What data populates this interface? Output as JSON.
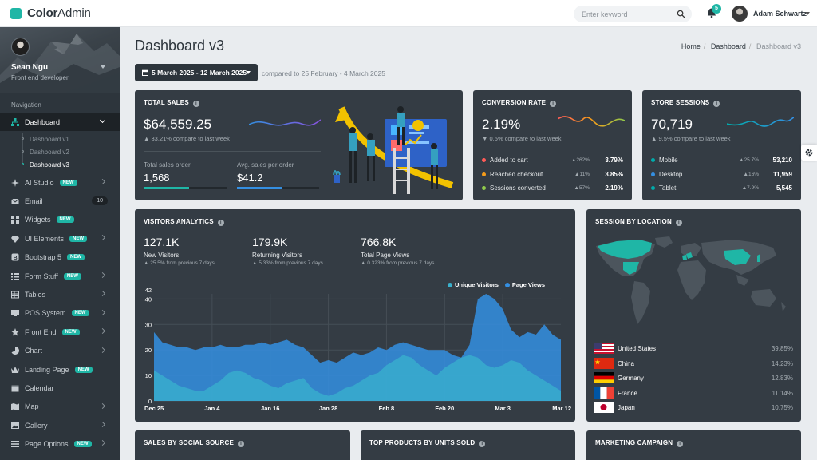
{
  "app": {
    "logo_bold": "Color",
    "logo_light": "Admin",
    "search_placeholder": "Enter keyword",
    "notification_count": "5",
    "user_name": "Adam Schwartz"
  },
  "sidebar": {
    "profile_name": "Sean Ngu",
    "profile_role": "Front end developer",
    "nav_header": "Navigation",
    "dashboard_label": "Dashboard",
    "sub_items": [
      "Dashboard v1",
      "Dashboard v2",
      "Dashboard v3"
    ],
    "items": [
      {
        "label": "AI Studio",
        "icon": "sparkle-icon",
        "badge": "NEW",
        "chevron": true
      },
      {
        "label": "Email",
        "icon": "email-icon",
        "count": "10"
      },
      {
        "label": "Widgets",
        "icon": "widgets-icon",
        "badge": "NEW"
      },
      {
        "label": "UI Elements",
        "icon": "gem-icon",
        "badge": "NEW",
        "chevron": true
      },
      {
        "label": "Bootstrap 5",
        "icon": "bootstrap-icon",
        "badge": "NEW"
      },
      {
        "label": "Form Stuff",
        "icon": "form-icon",
        "badge": "NEW",
        "chevron": true
      },
      {
        "label": "Tables",
        "icon": "table-icon",
        "chevron": true
      },
      {
        "label": "POS System",
        "icon": "pos-icon",
        "badge": "NEW",
        "chevron": true
      },
      {
        "label": "Front End",
        "icon": "star-icon",
        "badge": "NEW",
        "chevron": true
      },
      {
        "label": "Chart",
        "icon": "chart-icon",
        "chevron": true
      },
      {
        "label": "Landing Page",
        "icon": "crown-icon",
        "badge": "NEW"
      },
      {
        "label": "Calendar",
        "icon": "calendar-icon"
      },
      {
        "label": "Map",
        "icon": "map-icon",
        "chevron": true
      },
      {
        "label": "Gallery",
        "icon": "gallery-icon",
        "chevron": true
      },
      {
        "label": "Page Options",
        "icon": "page-options-icon",
        "badge": "NEW",
        "chevron": true
      }
    ]
  },
  "page": {
    "title": "Dashboard v3",
    "breadcrumb": [
      "Home",
      "Dashboard",
      "Dashboard v3"
    ],
    "date_range": "5 March 2025 - 12 March 2025",
    "compared_to": "compared to 25 February - 4 March 2025"
  },
  "total_sales": {
    "title": "TOTAL SALES",
    "value": "$64,559.25",
    "change": "33.21% compare to last week",
    "orders_label": "Total sales order",
    "orders_value": "1,568",
    "orders_progress": 0.5,
    "avg_label": "Avg. sales per order",
    "avg_value": "$41.2",
    "avg_progress": 0.5
  },
  "conversion_rate": {
    "title": "CONVERSION RATE",
    "value": "2.19%",
    "change": "0.5% compare to last week",
    "rows": [
      {
        "label": "Added to cart",
        "pct": "262%",
        "value": "3.79%",
        "color": "#ff5b57"
      },
      {
        "label": "Reached checkout",
        "pct": "11%",
        "value": "3.85%",
        "color": "#f59c1a"
      },
      {
        "label": "Sessions converted",
        "pct": "57%",
        "value": "2.19%",
        "color": "#90ca4b"
      }
    ]
  },
  "store_sessions": {
    "title": "STORE SESSIONS",
    "value": "70,719",
    "change": "9.5% compare to last week",
    "rows": [
      {
        "label": "Mobile",
        "pct": "25.7%",
        "value": "53,210",
        "color": "#00acac"
      },
      {
        "label": "Desktop",
        "pct": "16%",
        "value": "11,959",
        "color": "#348fe2"
      },
      {
        "label": "Tablet",
        "pct": "7.9%",
        "value": "5,545",
        "color": "#00acac"
      }
    ]
  },
  "visitors": {
    "title": "VISITORS ANALYTICS",
    "stats": [
      {
        "value": "127.1K",
        "label": "New Visitors",
        "change": "25.5% from previous 7 days"
      },
      {
        "value": "179.9K",
        "label": "Returning Visitors",
        "change": "5.33% from previous 7 days"
      },
      {
        "value": "766.8K",
        "label": "Total Page Views",
        "change": "0.323% from previous 7 days"
      }
    ]
  },
  "chart_data": {
    "type": "area",
    "title": "",
    "xlabel": "",
    "ylabel": "",
    "ymax_label": "42",
    "ylim": [
      0,
      42
    ],
    "yticks": [
      0,
      10,
      20,
      30,
      40
    ],
    "x_labels": [
      "Dec 25",
      "Jan 4",
      "Jan 16",
      "Jan 28",
      "Feb 8",
      "Feb 20",
      "Mar 3",
      "Mar 12"
    ],
    "series": [
      {
        "name": "Page Views",
        "color": "#348fe2",
        "values": [
          27,
          23,
          22,
          21,
          21,
          20,
          21,
          21,
          22,
          21,
          21,
          22,
          22,
          23,
          22,
          23,
          24,
          22,
          21,
          18,
          15,
          16,
          15,
          17,
          19,
          18,
          19,
          21,
          20,
          22,
          23,
          22,
          21,
          20,
          20,
          20,
          18,
          17,
          22,
          40,
          42,
          40,
          36,
          28,
          25,
          27,
          26,
          30,
          26,
          24
        ]
      },
      {
        "name": "Unique Visitors",
        "color": "#3ab1cd",
        "values": [
          12,
          10,
          8,
          6,
          5,
          4,
          4,
          6,
          8,
          11,
          12,
          11,
          9,
          8,
          6,
          5,
          7,
          8,
          9,
          5,
          3,
          2,
          3,
          5,
          6,
          8,
          10,
          11,
          14,
          16,
          18,
          17,
          14,
          12,
          10,
          13,
          15,
          17,
          18,
          17,
          14,
          13,
          14,
          16,
          15,
          12,
          10,
          8,
          6,
          4
        ]
      }
    ]
  },
  "session_by_location": {
    "title": "SESSION BY LOCATION",
    "countries": [
      {
        "name": "United States",
        "pct": "39.85%",
        "flag": "us-flag-icon"
      },
      {
        "name": "China",
        "pct": "14.23%",
        "flag": "cn-flag-icon"
      },
      {
        "name": "Germany",
        "pct": "12.83%",
        "flag": "de-flag-icon"
      },
      {
        "name": "France",
        "pct": "11.14%",
        "flag": "fr-flag-icon"
      },
      {
        "name": "Japan",
        "pct": "10.75%",
        "flag": "jp-flag-icon"
      }
    ]
  },
  "bottom_cards": {
    "social_title": "SALES BY SOCIAL SOURCE",
    "products_title": "TOP PRODUCTS BY UNITS SOLD",
    "marketing_title": "MARKETING CAMPAIGN"
  }
}
